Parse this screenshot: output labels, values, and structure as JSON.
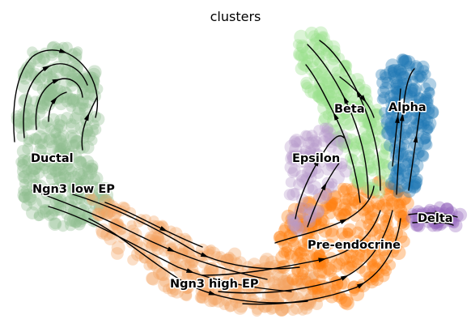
{
  "title": "clusters",
  "clusters": [
    {
      "id": "ductal",
      "label": "Ductal",
      "color": "#8fbc8f"
    },
    {
      "id": "ngn3-low",
      "label": "Ngn3 low EP",
      "color": "#8fbc8f"
    },
    {
      "id": "ngn3-high",
      "label": "Ngn3 high EP",
      "color": "#f4a460"
    },
    {
      "id": "pre-endocrine",
      "label": "Pre-endocrine",
      "color": "#ff7f0e"
    },
    {
      "id": "beta",
      "label": "Beta",
      "color": "#98df8a"
    },
    {
      "id": "alpha",
      "label": "Alpha",
      "color": "#1f77b4"
    },
    {
      "id": "delta",
      "label": "Delta",
      "color": "#9467bd"
    },
    {
      "id": "epsilon",
      "label": "Epsilon",
      "color": "#b79ccc"
    }
  ]
}
